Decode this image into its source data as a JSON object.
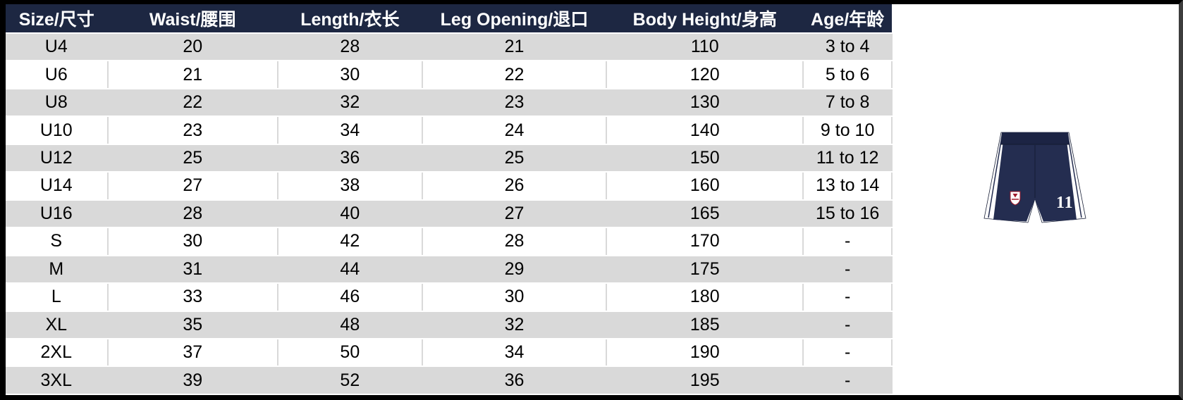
{
  "size_chart": {
    "columns": [
      "Size/尺寸",
      "Waist/腰围",
      "Length/衣长",
      "Leg Opening/退口",
      "Body Height/身高",
      "Age/年龄"
    ],
    "column_keys": [
      "size",
      "waist",
      "length",
      "leg-opening",
      "body-height",
      "age"
    ],
    "column_widths": [
      "11.5%",
      "19.2%",
      "16.3%",
      "20.8%",
      "22.2%",
      "10%"
    ],
    "rows": [
      [
        "U4",
        "20",
        "28",
        "21",
        "110",
        "3 to 4"
      ],
      [
        "U6",
        "21",
        "30",
        "22",
        "120",
        "5 to 6"
      ],
      [
        "U8",
        "22",
        "32",
        "23",
        "130",
        "7 to 8"
      ],
      [
        "U10",
        "23",
        "34",
        "24",
        "140",
        "9 to 10"
      ],
      [
        "U12",
        "25",
        "36",
        "25",
        "150",
        "11 to 12"
      ],
      [
        "U14",
        "27",
        "38",
        "26",
        "160",
        "13 to 14"
      ],
      [
        "U16",
        "28",
        "40",
        "27",
        "165",
        "15 to 16"
      ],
      [
        "S",
        "30",
        "42",
        "28",
        "170",
        "-"
      ],
      [
        "M",
        "31",
        "44",
        "29",
        "175",
        "-"
      ],
      [
        "L",
        "33",
        "46",
        "30",
        "180",
        "-"
      ],
      [
        "XL",
        "35",
        "48",
        "32",
        "185",
        "-"
      ],
      [
        "2XL",
        "37",
        "50",
        "34",
        "190",
        "-"
      ],
      [
        "3XL",
        "39",
        "52",
        "36",
        "195",
        "-"
      ]
    ],
    "colors": {
      "header_bg": "#1d2742",
      "header_text": "#ffffff",
      "stripe_row": "#d9d9d9",
      "white_row": "#ffffff",
      "cell_text": "#000000",
      "frame": "#000000"
    }
  },
  "chart_data": {
    "type": "table",
    "title": "Shorts size chart with ages and body heights",
    "columns": [
      "Size/尺寸",
      "Waist/腰围",
      "Length/衣长",
      "Leg Opening/退口",
      "Body Height/身高",
      "Age/年龄"
    ],
    "rows": [
      [
        "U4",
        "20",
        "28",
        "21",
        "110",
        "3 to 4"
      ],
      [
        "U6",
        "21",
        "30",
        "22",
        "120",
        "5 to 6"
      ],
      [
        "U8",
        "22",
        "32",
        "23",
        "130",
        "7 to 8"
      ],
      [
        "U10",
        "23",
        "34",
        "24",
        "140",
        "9 to 10"
      ],
      [
        "U12",
        "25",
        "36",
        "25",
        "150",
        "11 to 12"
      ],
      [
        "U14",
        "27",
        "38",
        "26",
        "160",
        "13 to 14"
      ],
      [
        "U16",
        "28",
        "40",
        "27",
        "165",
        "15 to 16"
      ],
      [
        "S",
        "30",
        "42",
        "28",
        "170",
        "-"
      ],
      [
        "M",
        "31",
        "44",
        "29",
        "175",
        "-"
      ],
      [
        "L",
        "33",
        "46",
        "30",
        "180",
        "-"
      ],
      [
        "XL",
        "35",
        "48",
        "32",
        "185",
        "-"
      ],
      [
        "2XL",
        "37",
        "50",
        "34",
        "190",
        "-"
      ],
      [
        "3XL",
        "39",
        "52",
        "36",
        "195",
        "-"
      ]
    ]
  },
  "product_image": {
    "jersey_number": "11",
    "body_color": "#242d50",
    "waistband_color": "#1c2444",
    "panel_color": "#ffffff",
    "crest_accent": "#a11a2b"
  }
}
